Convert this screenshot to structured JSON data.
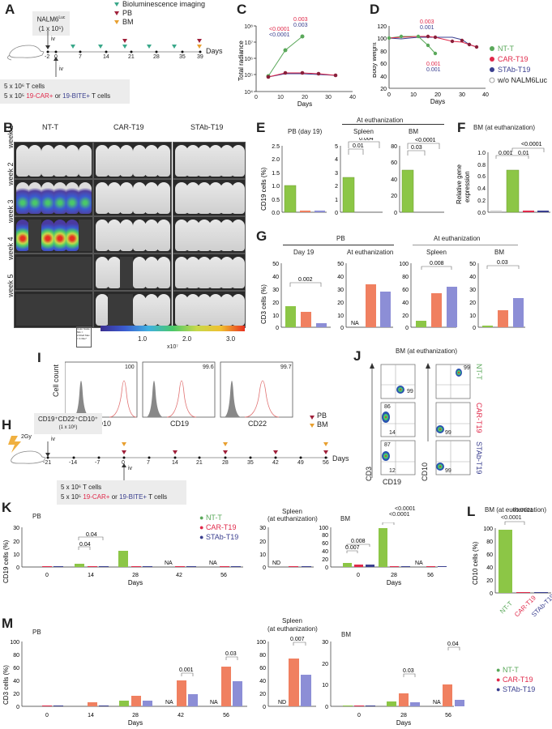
{
  "colors": {
    "nt": "#7dba3c",
    "car": "#e0294a",
    "car_bar": "#f08060",
    "stab": "#3a3f8f",
    "stab_bar": "#8c8ed6",
    "pb_marker": "#a0203a",
    "bm_marker": "#e8a030",
    "bli_marker": "#3aa88a"
  },
  "panelA": {
    "label": "A",
    "injection_box": {
      "line1": "NALM6",
      "sup": "Luc",
      "line2": "(1 x 10⁵)"
    },
    "iv_top": "iv",
    "iv_bottom": "iv",
    "legend": [
      {
        "marker": "bli",
        "text": "Bioluminescence imaging"
      },
      {
        "marker": "pb",
        "text": "PB"
      },
      {
        "marker": "bm",
        "text": "BM"
      }
    ],
    "days": [
      "-2",
      "0",
      "7",
      "14",
      "21",
      "28",
      "35",
      "39"
    ],
    "axis_label": "Days",
    "cells_line1": "5 x 10⁶ T cells",
    "cells_line2_prefix": "5 x 10⁵",
    "cells_car": "19-CAR+",
    "cells_or": "or",
    "cells_bite": "19-BITE+",
    "cells_suffix": "T cells"
  },
  "panelB": {
    "label": "B",
    "groups": [
      "NT-T",
      "CAR-T19",
      "STAb-T19"
    ],
    "weeks": [
      "week 1",
      "week 2",
      "week 3",
      "week 4",
      "week 5"
    ],
    "colorbar_ticks": [
      "1.0",
      "2.0",
      "3.0"
    ],
    "colorbar_unit": "x10⁷",
    "colorbar_box": "Color Scale Min = 2.00e6 Max = 3.33e7",
    "colorbar_side": "Radiance (p/sec/cm²/sr)"
  },
  "chart_data": [
    {
      "id": "C",
      "type": "line",
      "title": "",
      "xlabel": "Days",
      "ylabel": "Total radiance",
      "yscale": "log",
      "ylim": [
        10000,
        100000000
      ],
      "xlim": [
        0,
        40
      ],
      "yticks": [
        "10⁴",
        "10⁵",
        "10⁶",
        "10⁷",
        "10⁸"
      ],
      "xticks": [
        "0",
        "10",
        "20",
        "30",
        "40"
      ],
      "series": [
        {
          "name": "NT-T",
          "x": [
            5,
            12,
            19
          ],
          "y": [
            80000,
            6000000,
            35000000
          ]
        },
        {
          "name": "CAR-T19",
          "x": [
            5,
            12,
            19,
            26,
            33
          ],
          "y": [
            70000,
            100000,
            100000,
            90000,
            80000
          ]
        },
        {
          "name": "STAb-T19",
          "x": [
            5,
            12,
            19,
            26,
            33
          ],
          "y": [
            75000,
            100000,
            100000,
            100000,
            95000
          ]
        }
      ],
      "annotations": [
        {
          "text": "<0.0001",
          "color": "car"
        },
        {
          "text": "<0.0001",
          "color": "stab"
        },
        {
          "text": "0.003",
          "color": "car"
        },
        {
          "text": "0.003",
          "color": "stab"
        }
      ]
    },
    {
      "id": "D",
      "type": "line",
      "xlabel": "Days",
      "ylabel": "Body weight",
      "ylim": [
        20,
        120
      ],
      "xlim": [
        0,
        40
      ],
      "yticks": [
        "20",
        "40",
        "60",
        "80",
        "100",
        "120"
      ],
      "xticks": [
        "0",
        "10",
        "20",
        "30",
        "40"
      ],
      "series": [
        {
          "name": "NT-T",
          "x": [
            0,
            5,
            12,
            16,
            19
          ],
          "y": [
            100,
            103,
            103,
            89,
            75
          ]
        },
        {
          "name": "CAR-T19",
          "x": [
            0,
            5,
            12,
            16,
            19,
            26,
            33,
            36,
            39
          ],
          "y": [
            100,
            102,
            103,
            103,
            102,
            96,
            94,
            90,
            87
          ]
        },
        {
          "name": "STAb-T19",
          "x": [
            0,
            5,
            12,
            16,
            19,
            26,
            33,
            36,
            39
          ],
          "y": [
            100,
            99,
            101,
            101,
            102,
            102,
            98,
            90,
            87
          ]
        }
      ],
      "annotations": [
        {
          "text": "0.003",
          "color": "car"
        },
        {
          "text": "0.001",
          "color": "stab"
        },
        {
          "text": "0.001",
          "color": "car"
        },
        {
          "text": "0.001",
          "color": "stab"
        }
      ],
      "legend": [
        "NT-T",
        "CAR-T19",
        "STAb-T19",
        "w/o NALM6Luc"
      ]
    },
    {
      "id": "E",
      "type": "bar",
      "ylabel": "CD19 cells (%)",
      "header": "At euthanization",
      "subplots": [
        {
          "title": "PB (day 19)",
          "categories": [
            "NT-T",
            "CAR-T19",
            "STAb-T19"
          ],
          "values": [
            1.0,
            0.07,
            0.06
          ],
          "ylim": [
            0,
            2.5
          ],
          "yticks": [
            "0.0",
            "0.5",
            "1.0",
            "1.5",
            "2.0",
            "2.5"
          ]
        },
        {
          "title": "Spleen",
          "categories": [
            "NT-T",
            "CAR-T19",
            "STAb-T19"
          ],
          "values": [
            2.6,
            0.02,
            0.02
          ],
          "ylim": [
            0,
            5
          ],
          "yticks": [
            "0",
            "1",
            "2",
            "3",
            "4",
            "5"
          ],
          "pvalues": [
            "0.01",
            "0.004"
          ]
        },
        {
          "title": "BM",
          "categories": [
            "NT-T",
            "CAR-T19",
            "STAb-T19"
          ],
          "values": [
            50,
            0.2,
            0.2
          ],
          "ylim": [
            0,
            80
          ],
          "yticks": [
            "0",
            "20",
            "40",
            "60",
            "80"
          ],
          "pvalues": [
            "0.03",
            "<0.0001"
          ]
        }
      ]
    },
    {
      "id": "F",
      "type": "bar",
      "title": "BM (at euthanization)",
      "ylabel": "Relative gene expression",
      "categories": [
        "w/o NALM6",
        "NT-T",
        "CAR-T19",
        "STAb-T19"
      ],
      "values": [
        0.01,
        0.71,
        0.01,
        0.02
      ],
      "ylim": [
        0,
        1.0
      ],
      "yticks": [
        "0.0",
        "0.2",
        "0.4",
        "0.6",
        "0.8",
        "1.0"
      ],
      "pvalues": [
        "0.001",
        "0.01",
        "<0.0001"
      ]
    },
    {
      "id": "G",
      "type": "bar",
      "ylabel": "CD3 cells (%)",
      "headers": [
        "PB",
        "At euthanization"
      ],
      "subplots": [
        {
          "title": "Day 19",
          "values": [
            16,
            12,
            3
          ],
          "ylim": [
            0,
            50
          ],
          "yticks": [
            "0",
            "10",
            "20",
            "30",
            "40",
            "50"
          ],
          "pvalues": [
            "0.002"
          ]
        },
        {
          "title": "At euthanization",
          "values": [
            null,
            33,
            27
          ],
          "ylim": [
            0,
            50
          ],
          "yticks": [
            "0",
            "10",
            "20",
            "30",
            "40",
            "50"
          ],
          "na": "NA"
        },
        {
          "title": "Spleen",
          "values": [
            10,
            53,
            63
          ],
          "ylim": [
            0,
            100
          ],
          "yticks": [
            "0",
            "20",
            "40",
            "60",
            "80",
            "100"
          ],
          "pvalues": [
            "0.008"
          ]
        },
        {
          "title": "BM",
          "values": [
            1.5,
            13,
            22.5
          ],
          "ylim": [
            0,
            50
          ],
          "yticks": [
            "0",
            "10",
            "20",
            "30",
            "40",
            "50"
          ],
          "pvalues": [
            "0.03"
          ]
        }
      ]
    },
    {
      "id": "K",
      "type": "bar",
      "ylabel": "CD19 cells (%)",
      "xlabel": "Days",
      "subplots": [
        {
          "title": "PB",
          "categories": [
            "0",
            "14",
            "28",
            "42",
            "56"
          ],
          "series": [
            {
              "name": "NT-T",
              "values": [
                0,
                2.2,
                12,
                null,
                null
              ]
            },
            {
              "name": "CAR-T19",
              "values": [
                0,
                0,
                0,
                0,
                0
              ]
            },
            {
              "name": "STAb-T19",
              "values": [
                0,
                0,
                0,
                0,
                0
              ]
            }
          ],
          "ylim": [
            0,
            30
          ],
          "yticks": [
            "0",
            "10",
            "20",
            "30"
          ],
          "pvalues": [
            "0.04",
            "0.04"
          ],
          "na": [
            "NA",
            "NA"
          ]
        },
        {
          "title": "Spleen (at euthanization)",
          "series": [
            {
              "name": "NT-T",
              "values": [
                null
              ]
            },
            {
              "name": "CAR-T19",
              "values": [
                0
              ]
            },
            {
              "name": "STAb-T19",
              "values": [
                0
              ]
            }
          ],
          "ylim": [
            0,
            30
          ],
          "yticks": [
            "0",
            "10",
            "20",
            "30"
          ],
          "nd": "ND"
        },
        {
          "title": "BM",
          "categories": [
            "0",
            "28",
            "56"
          ],
          "series": [
            {
              "name": "NT-T",
              "values": [
                11,
                97,
                null
              ]
            },
            {
              "name": "CAR-T19",
              "values": [
                6,
                0.5,
                0.5
              ]
            },
            {
              "name": "STAb-T19",
              "values": [
                6,
                0.5,
                0.5
              ]
            }
          ],
          "ylim": [
            0,
            100
          ],
          "yticks": [
            "0",
            "20",
            "40",
            "60",
            "80",
            "100"
          ],
          "pvalues": [
            "0.007",
            "0.008",
            "<0.0001",
            "<0.0001"
          ],
          "na": [
            "NA"
          ]
        }
      ]
    },
    {
      "id": "L",
      "type": "bar",
      "title": "BM (at euthanization)",
      "ylabel": "CD10 cells (%)",
      "categories": [
        "NT-T",
        "CAR-T19",
        "STAb-T19"
      ],
      "values": [
        98,
        0.5,
        0.5
      ],
      "ylim": [
        0,
        100
      ],
      "yticks": [
        "0",
        "20",
        "40",
        "60",
        "80",
        "100"
      ],
      "pvalues": [
        "<0.0001",
        "<0.0001"
      ]
    },
    {
      "id": "M",
      "type": "bar",
      "ylabel": "CD3 cells (%)",
      "xlabel": "Days",
      "subplots": [
        {
          "title": "PB",
          "categories": [
            "0",
            "14",
            "28",
            "42",
            "56"
          ],
          "series": [
            {
              "name": "NT-T",
              "values": [
                0,
                0,
                9,
                null,
                null
              ]
            },
            {
              "name": "CAR-T19",
              "values": [
                0,
                6,
                16,
                40,
                61
              ]
            },
            {
              "name": "STAb-T19",
              "values": [
                0,
                0.5,
                9,
                19,
                38
              ]
            }
          ],
          "ylim": [
            0,
            100
          ],
          "yticks": [
            "0",
            "20",
            "40",
            "60",
            "80",
            "100"
          ],
          "pvalues": [
            "0.001",
            "0.03"
          ],
          "na": [
            "NA",
            "NA"
          ]
        },
        {
          "title": "Spleen (at euthanization)",
          "series": [
            {
              "name": "NT-T",
              "values": [
                null
              ]
            },
            {
              "name": "CAR-T19",
              "values": [
                74
              ]
            },
            {
              "name": "STAb-T19",
              "values": [
                48
              ]
            }
          ],
          "ylim": [
            0,
            100
          ],
          "yticks": [
            "0",
            "20",
            "40",
            "60",
            "80",
            "100"
          ],
          "pvalues": [
            "0.007"
          ],
          "nd": "ND"
        },
        {
          "title": "BM",
          "categories": [
            "0",
            "28",
            "56"
          ],
          "series": [
            {
              "name": "NT-T",
              "values": [
                0,
                2.3,
                null
              ]
            },
            {
              "name": "CAR-T19",
              "values": [
                0,
                6,
                10
              ]
            },
            {
              "name": "STAb-T19",
              "values": [
                0,
                2,
                3
              ]
            }
          ],
          "ylim": [
            0,
            30
          ],
          "yticks": [
            "0",
            "10",
            "20",
            "30"
          ],
          "pvalues": [
            "0.03",
            "0.04"
          ],
          "na": [
            "NA"
          ]
        }
      ]
    }
  ],
  "panelI": {
    "label": "I",
    "ylabel": "Cell count",
    "plots": [
      {
        "marker": "CD10",
        "pct": "100"
      },
      {
        "marker": "CD19",
        "pct": "99.6"
      },
      {
        "marker": "CD22",
        "pct": "99.7"
      }
    ]
  },
  "panelH": {
    "label": "H",
    "irradiation": "2Gy",
    "box_line1": "CD19⁺CD22⁺CD10⁺",
    "box_line2": "(1 x 10⁶)",
    "iv_top": "iv",
    "iv_bottom": "iv",
    "legend": [
      {
        "marker": "pb",
        "text": "PB"
      },
      {
        "marker": "bm",
        "text": "BM"
      }
    ],
    "days": [
      "-21",
      "-14",
      "-7",
      "0",
      "7",
      "14",
      "21",
      "28",
      "35",
      "42",
      "49",
      "56"
    ],
    "axis_label": "Days",
    "cells_line1": "5 x 10⁶ T cells",
    "cells_line2_prefix": "5 x 10⁵",
    "cells_car": "19-CAR+",
    "cells_or": "or",
    "cells_bite": "19-BITE+",
    "cells_suffix": "T cells"
  },
  "panelJ": {
    "label": "J",
    "title": "BM (at euthanization)",
    "ylabel_left": "CD3",
    "ylabel_right": "CD10",
    "xlabel": "CD19",
    "rows": [
      {
        "group": "NT-T",
        "left": {
          "tl": "",
          "br": "99"
        },
        "right": {
          "tr": "99"
        }
      },
      {
        "group": "CAR-T19",
        "left": {
          "tl": "86",
          "br": "14"
        },
        "right": {
          "br": "99"
        }
      },
      {
        "group": "STAb-T19",
        "left": {
          "tl": "87",
          "br": "12"
        },
        "right": {
          "br": "99"
        }
      }
    ]
  },
  "labels": {
    "K": "K",
    "L": "L",
    "M": "M",
    "C": "C",
    "D": "D",
    "E": "E",
    "F": "F",
    "G": "G"
  },
  "legendKM": [
    "NT-T",
    "CAR-T19",
    "STAb-T19"
  ],
  "text": {
    "na": "NA",
    "nd": "ND",
    "days": "Days",
    "k_pb": "PB",
    "k_spleen1": "Spleen",
    "k_spleen2": "(at euthanization)",
    "k_bm": "BM",
    "l_title": "BM (at euthanization)"
  }
}
